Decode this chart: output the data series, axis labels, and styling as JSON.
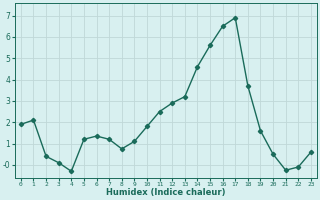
{
  "x": [
    0,
    1,
    2,
    3,
    4,
    5,
    6,
    7,
    8,
    9,
    10,
    11,
    12,
    13,
    14,
    15,
    16,
    17,
    18,
    19,
    20,
    21,
    22,
    23
  ],
  "y": [
    1.9,
    2.1,
    0.4,
    0.1,
    -0.3,
    1.2,
    1.35,
    1.2,
    0.75,
    1.1,
    1.8,
    2.5,
    2.9,
    3.2,
    4.6,
    5.6,
    6.5,
    6.9,
    3.7,
    1.6,
    0.5,
    -0.25,
    -0.1,
    0.6
  ],
  "xlabel": "Humidex (Indice chaleur)",
  "ylabel": "",
  "ylim": [
    -0.6,
    7.6
  ],
  "xlim": [
    -0.5,
    23.5
  ],
  "line_color": "#1a6b5a",
  "marker": "D",
  "marker_size": 2.2,
  "bg_color": "#d8f0f0",
  "grid_color": "#c0d8d8",
  "line_width": 1.0,
  "yticks": [
    0,
    1,
    2,
    3,
    4,
    5,
    6,
    7
  ],
  "ytick_labels": [
    "-0",
    "1",
    "2",
    "3",
    "4",
    "5",
    "6",
    "7"
  ],
  "xticks": [
    0,
    1,
    2,
    3,
    4,
    5,
    6,
    7,
    8,
    9,
    10,
    11,
    12,
    13,
    14,
    15,
    16,
    17,
    18,
    19,
    20,
    21,
    22,
    23
  ],
  "xtick_labels": [
    "0",
    "1",
    "2",
    "3",
    "4",
    "5",
    "6",
    "7",
    "8",
    "9",
    "10",
    "11",
    "12",
    "13",
    "14",
    "15",
    "16",
    "17",
    "18",
    "19",
    "20",
    "21",
    "22",
    "23"
  ]
}
